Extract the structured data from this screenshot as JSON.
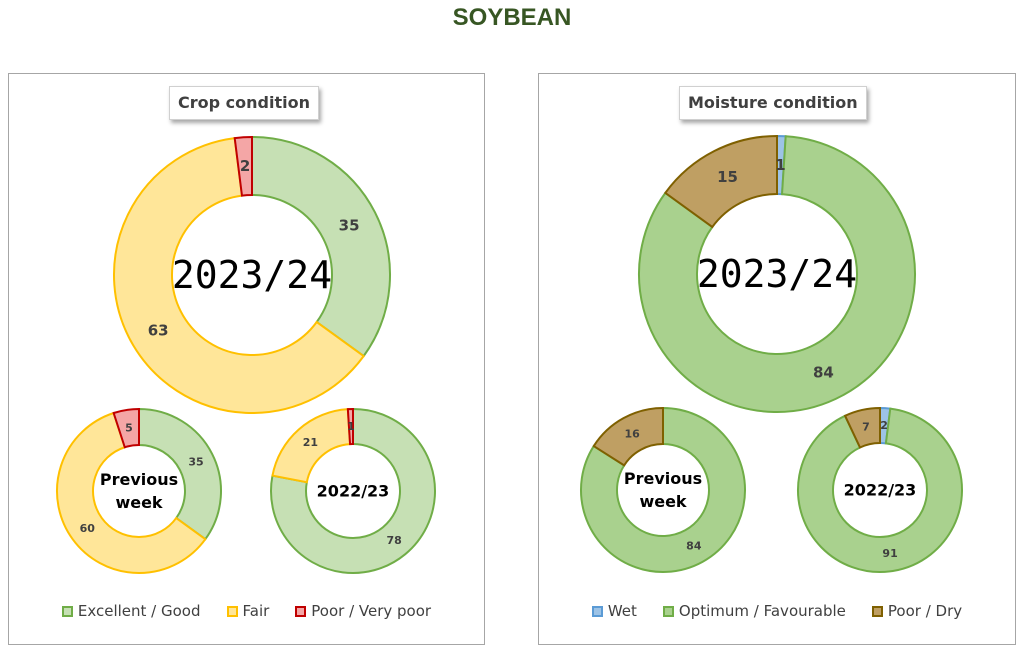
{
  "title": "SOYBEAN",
  "chart_data": [
    {
      "type": "donut",
      "title": "Crop condition",
      "legend_position": "bottom",
      "series_names": [
        "Excellent / Good",
        "Fair",
        "Poor / Very poor"
      ],
      "colors": {
        "fills": [
          "#c6e0b4",
          "#ffe699",
          "#f4a6a6"
        ],
        "strokes": [
          "#70ad47",
          "#ffc000",
          "#c00000"
        ]
      },
      "donuts": [
        {
          "center_label": "2023/24",
          "values": [
            35,
            63,
            2
          ]
        },
        {
          "center_label": "Previous week",
          "values": [
            35,
            60,
            5
          ]
        },
        {
          "center_label": "2022/23",
          "values": [
            78,
            21,
            1
          ]
        }
      ]
    },
    {
      "type": "donut",
      "title": "Moisture condition",
      "legend_position": "bottom",
      "series_names": [
        "Wet",
        "Optimum / Favourable",
        "Poor / Dry"
      ],
      "colors": {
        "fills": [
          "#9dc3e6",
          "#a9d18e",
          "#bf9f63"
        ],
        "strokes": [
          "#5b9bd5",
          "#70ad47",
          "#7f6000"
        ]
      },
      "donuts": [
        {
          "center_label": "2023/24",
          "values": [
            1,
            84,
            15
          ]
        },
        {
          "center_label": "Previous week",
          "values": [
            0,
            84,
            16
          ]
        },
        {
          "center_label": "2022/23",
          "values": [
            2,
            91,
            7
          ]
        }
      ]
    }
  ]
}
